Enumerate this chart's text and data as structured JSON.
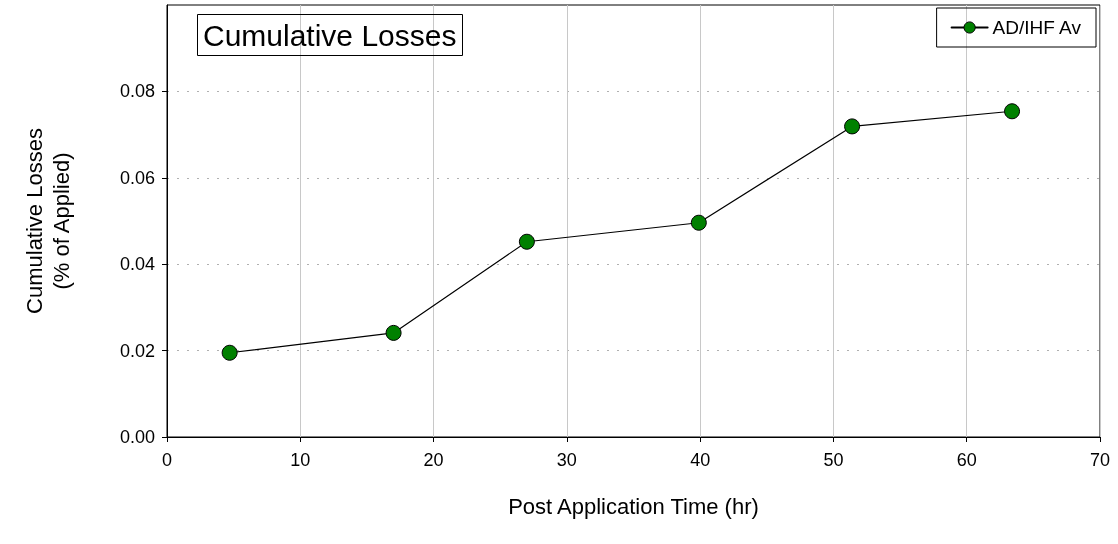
{
  "chart_data": {
    "type": "line",
    "title": "Cumulative Losses",
    "xlabel": "Post Application Time (hr)",
    "ylabel": "Cumulative Losses\n(% of Applied)",
    "x": [
      4.7,
      17.0,
      27.0,
      39.9,
      51.4,
      63.4
    ],
    "series": [
      {
        "name": "AD/IHF Av",
        "color": "#008000",
        "values": [
          0.0195,
          0.0241,
          0.0452,
          0.0496,
          0.0719,
          0.0754
        ]
      }
    ],
    "xlim": [
      0,
      70
    ],
    "xticks": [
      0,
      10,
      20,
      30,
      40,
      50,
      60,
      70
    ],
    "ylim": [
      0,
      0.1
    ],
    "yticks": [
      {
        "value": 0,
        "label": "0.00"
      },
      0.02,
      0.04,
      0.06,
      0.08
    ],
    "grid": true,
    "legend": "top right",
    "marker": "circle",
    "line_style": "solid"
  }
}
